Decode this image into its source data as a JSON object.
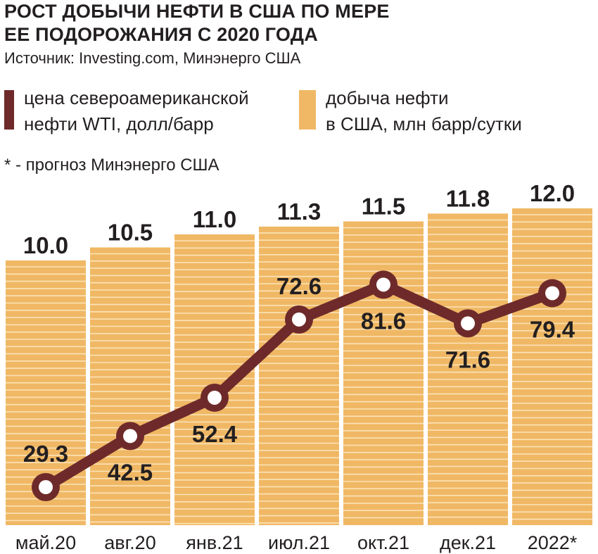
{
  "title_line1": "РОСТ ДОБЫЧИ НЕФТИ В США ПО МЕРЕ",
  "title_line2": "ЕЕ ПОДОРОЖАНИЯ С 2020 ГОДА",
  "source": "Источник: Investing.com, Минэнерго США",
  "legend": {
    "line_label_1": "цена североамериканской",
    "line_label_2": "нефти WTI, долл/барр",
    "bar_label_1": "добыча нефти",
    "bar_label_2": "в США, млн барр/сутки"
  },
  "note": "* - прогноз Минэнерго США",
  "colors": {
    "bar_fill": "#f0b865",
    "bar_stripe": "#fbe3b8",
    "line": "#6e2a2a",
    "marker_fill": "#ffffff",
    "text": "#231f20"
  },
  "chart_data": {
    "type": "bar",
    "categories": [
      "май.20",
      "авг.20",
      "янв.21",
      "июл.21",
      "окт.21",
      "дек.21",
      "2022*"
    ],
    "series": [
      {
        "name": "добыча нефти в США, млн барр/сутки",
        "type": "bar",
        "values": [
          10.0,
          10.5,
          11.0,
          11.3,
          11.5,
          11.8,
          12.0
        ],
        "labels": [
          "10.0",
          "10.5",
          "11.0",
          "11.3",
          "11.5",
          "11.8",
          "12.0"
        ]
      },
      {
        "name": "цена североамериканской нефти WTI, долл/барр",
        "type": "line",
        "values": [
          29.3,
          42.5,
          52.4,
          72.6,
          81.6,
          71.6,
          79.4
        ],
        "labels": [
          "29.3",
          "42.5",
          "52.4",
          "72.6",
          "81.6",
          "71.6",
          "79.4"
        ]
      }
    ],
    "legend_position": "top"
  }
}
